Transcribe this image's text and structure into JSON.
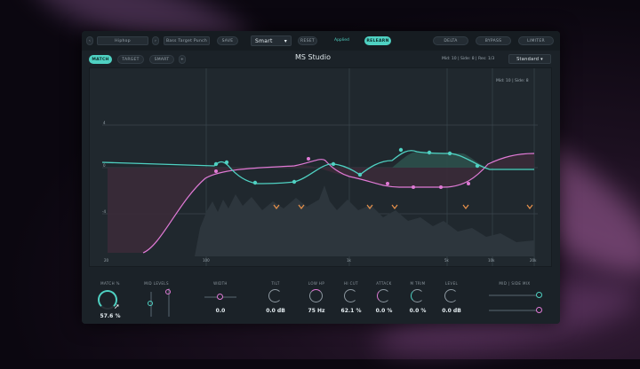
{
  "topbar": {
    "nav_prev": "‹",
    "preset_name": "Hiphop",
    "nav_next": "›",
    "preset_variant": "Bass Target Punch",
    "save_label": "SAVE",
    "mode_value": "Smart",
    "reset_label": "RESET",
    "status_text": "Applied",
    "learn_label": "RELEARN",
    "delta_label": "DELTA",
    "bypass_label": "BYPASS",
    "limiter_label": "LIMITER"
  },
  "subbar": {
    "tabs": [
      "MATCH",
      "TARGET",
      "SMART"
    ],
    "active_tab": "MATCH",
    "title": "MS Studio",
    "info": "Mid: 10 | Side: 8 | Res: 1/3",
    "profile_value": "Standard"
  },
  "graph": {
    "readout": "Mid: 10 | Side: 8",
    "y_ticks": [
      "4",
      "0",
      "-4"
    ],
    "x_ticks": [
      "20",
      "100",
      "1k",
      "5k",
      "10k",
      "20k"
    ]
  },
  "controls": {
    "match": {
      "label": "MATCH %",
      "value": "57.6 %"
    },
    "mid_levels": {
      "label": "MID LEVELS"
    },
    "width": {
      "label": "WIDTH",
      "value": "0.0"
    },
    "tilt": {
      "label": "TILT",
      "value": "0.0 dB"
    },
    "low_hp": {
      "label": "LOW HP",
      "value": "75 Hz"
    },
    "hi_cut": {
      "label": "HI CUT",
      "value": "62.1 %"
    },
    "attack": {
      "label": "ATTACK",
      "value": "0.0 %"
    },
    "m_trim": {
      "label": "M TRIM",
      "value": "0.0 %"
    },
    "level": {
      "label": "LEVEL",
      "value": "0.0 dB"
    },
    "mid_side": {
      "label": "MID | SIDE MIX"
    }
  },
  "colors": {
    "accent_teal": "#4fd1c2",
    "accent_pink": "#e07ad6",
    "marker_orange": "#e8914a",
    "panel": "#1b2228"
  }
}
